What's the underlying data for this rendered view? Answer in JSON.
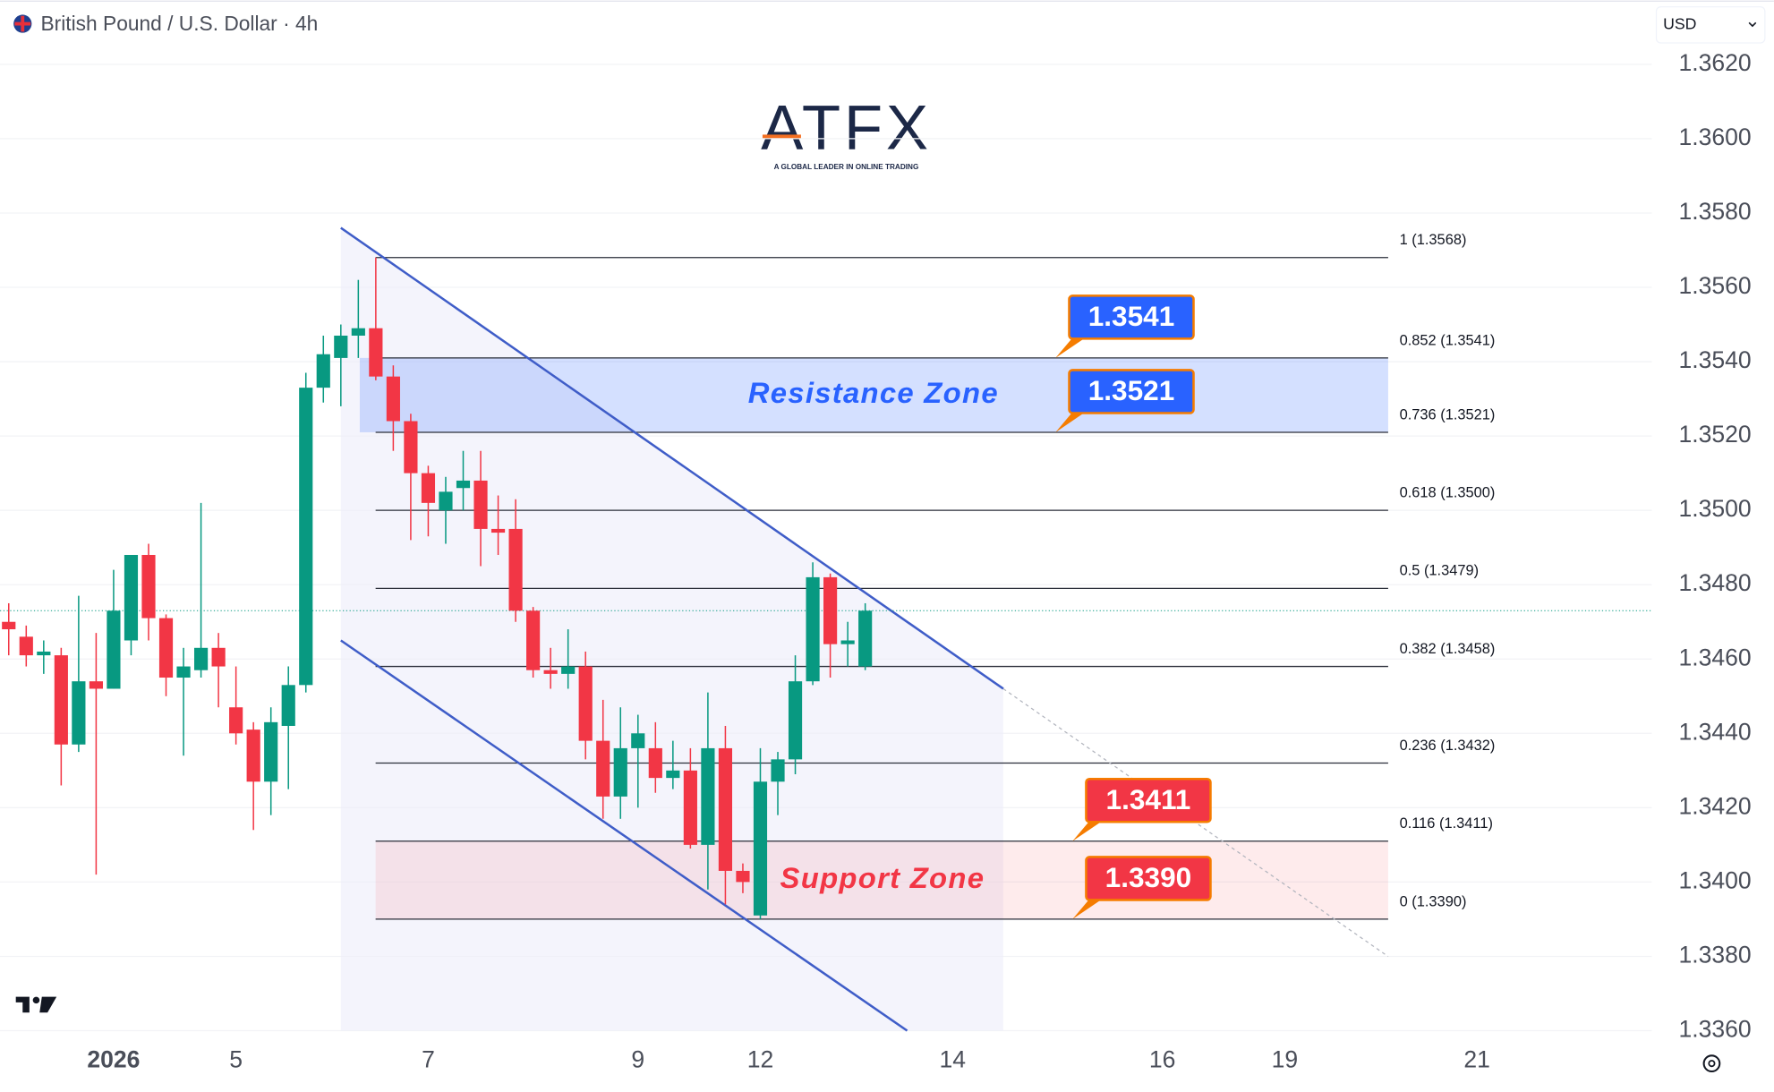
{
  "header": {
    "symbol": "British Pound / U.S. Dollar · 4h",
    "currency": "USD"
  },
  "logo": {
    "brand": "ATFX",
    "tagline": "A GLOBAL LEADER IN ONLINE TRADING"
  },
  "chart_data": {
    "type": "candlestick",
    "up_color": "#089981",
    "down_color": "#f23645",
    "open": [
      1.347,
      1.3466,
      1.3461,
      1.3461,
      1.3437,
      1.3454,
      1.3452,
      1.3465,
      1.3488,
      1.3471,
      1.3455,
      1.3457,
      1.3463,
      1.3447,
      1.3441,
      1.3427,
      1.3442,
      1.3453,
      1.3533,
      1.3541,
      1.3547,
      1.3549,
      1.3536,
      1.3524,
      1.351,
      1.35,
      1.3506,
      1.3508,
      1.3495,
      1.3495,
      1.3473,
      1.3457,
      1.3456,
      1.3458,
      1.3438,
      1.3423,
      1.3436,
      1.3436,
      1.3428,
      1.343,
      1.341,
      1.3436,
      1.3403,
      1.3391,
      1.3427,
      1.3433,
      1.3454,
      1.3482,
      1.3464,
      1.3458
    ],
    "high": [
      1.3475,
      1.3469,
      1.3465,
      1.3463,
      1.3477,
      1.3467,
      1.3484,
      1.3488,
      1.3491,
      1.3472,
      1.3463,
      1.3502,
      1.3467,
      1.3458,
      1.3443,
      1.3447,
      1.3458,
      1.3537,
      1.3547,
      1.355,
      1.3562,
      1.3568,
      1.3539,
      1.3526,
      1.3512,
      1.3509,
      1.3516,
      1.3516,
      1.3504,
      1.3503,
      1.3474,
      1.3463,
      1.3468,
      1.3462,
      1.3449,
      1.3447,
      1.3445,
      1.3443,
      1.3438,
      1.3436,
      1.3451,
      1.3442,
      1.3405,
      1.3436,
      1.3435,
      1.3461,
      1.3486,
      1.3483,
      1.347,
      1.3475
    ],
    "low": [
      1.3461,
      1.3458,
      1.3456,
      1.3426,
      1.3435,
      1.3402,
      1.3452,
      1.3461,
      1.3465,
      1.345,
      1.3434,
      1.3455,
      1.3447,
      1.3437,
      1.3414,
      1.3418,
      1.3425,
      1.3451,
      1.3529,
      1.3528,
      1.3541,
      1.3535,
      1.3516,
      1.3492,
      1.3493,
      1.3491,
      1.35,
      1.3485,
      1.3488,
      1.347,
      1.3455,
      1.3452,
      1.3452,
      1.3433,
      1.3417,
      1.3417,
      1.342,
      1.3424,
      1.3425,
      1.3409,
      1.3398,
      1.3394,
      1.3397,
      1.339,
      1.3418,
      1.3429,
      1.3453,
      1.3455,
      1.3458,
      1.3457
    ],
    "close": [
      1.3468,
      1.3461,
      1.3462,
      1.3437,
      1.3454,
      1.3452,
      1.3473,
      1.3488,
      1.3471,
      1.3455,
      1.3458,
      1.3463,
      1.3458,
      1.344,
      1.3427,
      1.3443,
      1.3453,
      1.3533,
      1.3542,
      1.3547,
      1.3549,
      1.3536,
      1.3524,
      1.351,
      1.3502,
      1.3505,
      1.3508,
      1.3495,
      1.3494,
      1.3473,
      1.3457,
      1.3456,
      1.3458,
      1.3438,
      1.3423,
      1.3436,
      1.344,
      1.3428,
      1.343,
      1.341,
      1.3436,
      1.3403,
      1.34,
      1.3427,
      1.3433,
      1.3454,
      1.3482,
      1.3464,
      1.3465,
      1.3473
    ],
    "xlim": [
      -0.5,
      94
    ],
    "xticks": [
      {
        "value": 6,
        "label": "2026"
      },
      {
        "value": 13,
        "label": "5"
      },
      {
        "value": 24,
        "label": "7"
      },
      {
        "value": 36,
        "label": "9"
      },
      {
        "value": 43,
        "label": "12"
      },
      {
        "value": 54,
        "label": "14"
      },
      {
        "value": 66,
        "label": "16"
      },
      {
        "value": 73,
        "label": "19"
      },
      {
        "value": 84,
        "label": "21"
      }
    ],
    "ylim": [
      1.336,
      1.3637
    ],
    "yticks": [
      {
        "value": 1.336,
        "label": "1.3360"
      },
      {
        "value": 1.338,
        "label": "1.3380"
      },
      {
        "value": 1.34,
        "label": "1.3400"
      },
      {
        "value": 1.342,
        "label": "1.3420"
      },
      {
        "value": 1.344,
        "label": "1.3440"
      },
      {
        "value": 1.346,
        "label": "1.3460"
      },
      {
        "value": 1.348,
        "label": "1.3480"
      },
      {
        "value": 1.35,
        "label": "1.3500"
      },
      {
        "value": 1.352,
        "label": "1.3520"
      },
      {
        "value": 1.354,
        "label": "1.3540"
      },
      {
        "value": 1.356,
        "label": "1.3560"
      },
      {
        "value": 1.358,
        "label": "1.3580"
      },
      {
        "value": 1.36,
        "label": "1.3600"
      },
      {
        "value": 1.362,
        "label": "1.3620"
      }
    ],
    "grid": true,
    "fib_levels": [
      {
        "value": 1.3568,
        "label": "1 (1.3568)"
      },
      {
        "value": 1.3541,
        "label": "0.852 (1.3541)"
      },
      {
        "value": 1.3521,
        "label": "0.736 (1.3521)"
      },
      {
        "value": 1.35,
        "label": "0.618 (1.3500)"
      },
      {
        "value": 1.3479,
        "label": "0.5 (1.3479)"
      },
      {
        "value": 1.3458,
        "label": "0.382 (1.3458)"
      },
      {
        "value": 1.3432,
        "label": "0.236 (1.3432)"
      },
      {
        "value": 1.3411,
        "label": "0.116 (1.3411)"
      },
      {
        "value": 1.339,
        "label": "0 (1.3390)"
      }
    ],
    "zones": [
      {
        "name": "Resistance Zone",
        "from": 1.3521,
        "to": 1.3541,
        "color": "#2962ff"
      },
      {
        "name": "Support Zone",
        "from": 1.339,
        "to": 1.3411,
        "color": "#f23645"
      }
    ],
    "callouts": [
      {
        "value": 1.3541,
        "label": "1.3541",
        "color": "#2962ff"
      },
      {
        "value": 1.3521,
        "label": "1.3521",
        "color": "#2962ff"
      },
      {
        "value": 1.3411,
        "label": "1.3411",
        "color": "#f23645"
      },
      {
        "value": 1.339,
        "label": "1.3390",
        "color": "#f23645"
      }
    ],
    "channel": {
      "upper": [
        [
          19,
          1.3576
        ],
        [
          56.9,
          1.3452
        ]
      ],
      "lower": [
        [
          19,
          1.3465
        ],
        [
          51.4,
          1.336
        ]
      ]
    }
  }
}
